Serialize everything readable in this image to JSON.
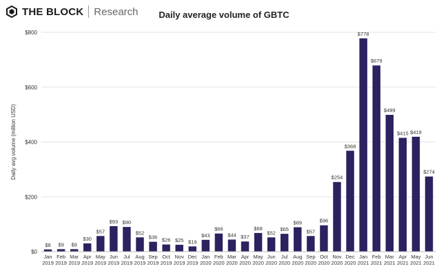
{
  "brand": {
    "name": "THE BLOCK",
    "sub": "Research"
  },
  "colors": {
    "bar": "#2b2260",
    "grid": "#e3e3e3",
    "text": "#333333"
  },
  "chart_data": {
    "type": "bar",
    "title": "Daily average volume of GBTC",
    "ylabel": "Daily avg volume (million USD)",
    "xlabel": "",
    "ylim": [
      0,
      800
    ],
    "yticks": [
      "$0",
      "$200",
      "$400",
      "$600",
      "$800"
    ],
    "categories": [
      [
        "Jan",
        "2019"
      ],
      [
        "Feb",
        "2019"
      ],
      [
        "Mar",
        "2019"
      ],
      [
        "Apr",
        "2019"
      ],
      [
        "May",
        "2019"
      ],
      [
        "Jun",
        "2019"
      ],
      [
        "Jul",
        "2019"
      ],
      [
        "Aug",
        "2019"
      ],
      [
        "Sep",
        "2019"
      ],
      [
        "Oct",
        "2019"
      ],
      [
        "Nov",
        "2019"
      ],
      [
        "Dec",
        "2019"
      ],
      [
        "Jan",
        "2020"
      ],
      [
        "Feb",
        "2020"
      ],
      [
        "Mar",
        "2020"
      ],
      [
        "Apr",
        "2020"
      ],
      [
        "May",
        "2020"
      ],
      [
        "Jun",
        "2020"
      ],
      [
        "Jul",
        "2020"
      ],
      [
        "Aug",
        "2020"
      ],
      [
        "Sep",
        "2020"
      ],
      [
        "Oct",
        "2020"
      ],
      [
        "Nov",
        "2020"
      ],
      [
        "Dec",
        "2020"
      ],
      [
        "Jan",
        "2021"
      ],
      [
        "Feb",
        "2021"
      ],
      [
        "Mar",
        "2021"
      ],
      [
        "Apr",
        "2021"
      ],
      [
        "May",
        "2021"
      ],
      [
        "Jun",
        "2021"
      ]
    ],
    "values": [
      8,
      9,
      9,
      30,
      57,
      93,
      90,
      52,
      36,
      26,
      25,
      19,
      43,
      66,
      44,
      37,
      68,
      52,
      65,
      89,
      57,
      96,
      254,
      368,
      778,
      679,
      499,
      415,
      419,
      274
    ],
    "data_labels": [
      "$8",
      "$9",
      "$9",
      "$30",
      "$57",
      "$93",
      "$90",
      "$52",
      "$36",
      "$26",
      "$25",
      "$19",
      "$43",
      "$66",
      "$44",
      "$37",
      "$68",
      "$52",
      "$65",
      "$89",
      "$57",
      "$96",
      "$254",
      "$368",
      "$778",
      "$679",
      "$499",
      "$415",
      "$419",
      "$274"
    ],
    "grid": true
  }
}
